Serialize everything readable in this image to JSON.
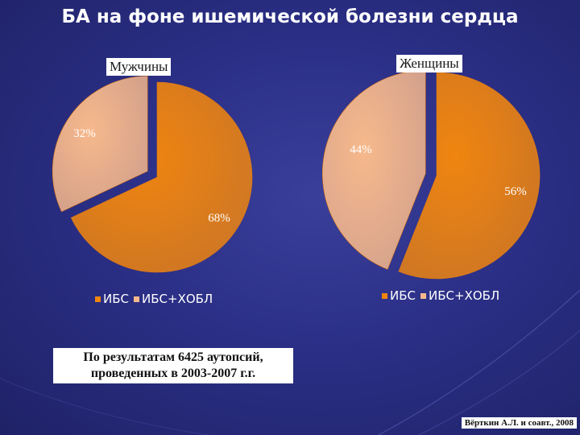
{
  "slide": {
    "title": "БА на фоне ишемической болезни сердца",
    "note_line1": "По результатам 6425 аутопсий,",
    "note_line2": "проведенных в 2003-2007 г.г.",
    "source": "Вёрткин А.Л. и соавт., 2008"
  },
  "colors": {
    "ibs": "#f0850f",
    "ibs_hobl": "#f7b98c",
    "label_text": "#ffffff"
  },
  "chart_data": [
    {
      "type": "pie",
      "title": "Мужчины",
      "categories": [
        "ИБС",
        "ИБС+ХОБЛ"
      ],
      "values": [
        68,
        32
      ],
      "labels": [
        "68%",
        "32%"
      ],
      "exploded": "ИБС+ХОБЛ",
      "legend_position": "bottom"
    },
    {
      "type": "pie",
      "title": "Женщины",
      "categories": [
        "ИБС",
        "ИБС+ХОБЛ"
      ],
      "values": [
        56,
        44
      ],
      "labels": [
        "56%",
        "44%"
      ],
      "exploded": "ИБС+ХОБЛ",
      "legend_position": "bottom"
    }
  ]
}
